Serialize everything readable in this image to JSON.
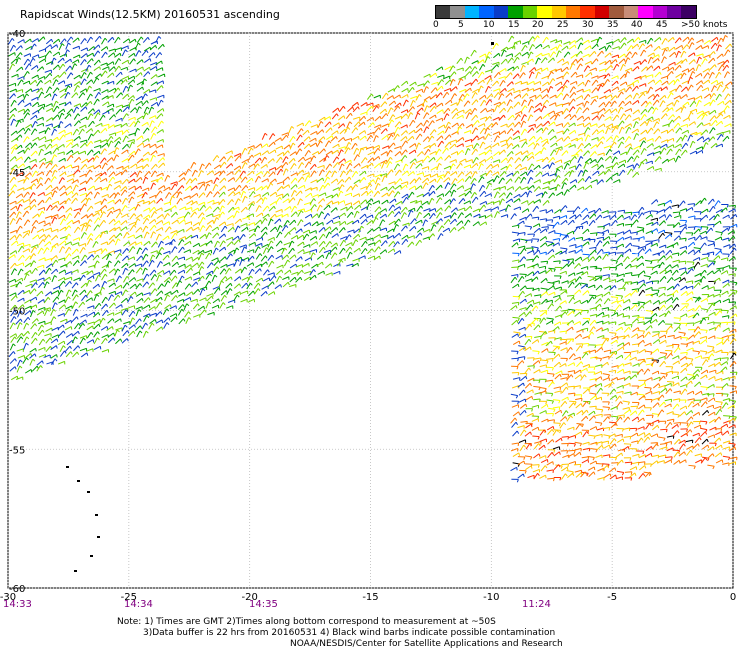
{
  "title": "Rapidscat Winds(12.5KM) 20160531 ascending",
  "colorbar": {
    "labels": [
      "0",
      "5",
      "10",
      "15",
      "20",
      "25",
      "30",
      "35",
      "40",
      "45",
      ">50 knots"
    ],
    "colors": [
      "#3a3a3a",
      "#909090",
      "#00b4ff",
      "#0064ff",
      "#0a3cc8",
      "#00a000",
      "#6ad200",
      "#ffff00",
      "#ffc800",
      "#ff7800",
      "#ff3000",
      "#d20000",
      "#a05a3c",
      "#c88c78",
      "#ff00ff",
      "#b400d2",
      "#6e00a0",
      "#3c0064"
    ]
  },
  "axes": {
    "lon_ticks": [
      "-30",
      "-25",
      "-20",
      "-15",
      "-10",
      "-5",
      "0"
    ],
    "lat_ticks": [
      "-40",
      "-45",
      "-50",
      "-55",
      "-60"
    ],
    "lon_range": [
      -30,
      0
    ],
    "lat_range": [
      -60,
      -40
    ]
  },
  "times": [
    "14:33",
    "14:34",
    "14:35",
    "11:24"
  ],
  "notes": {
    "line1": "Note: 1) Times are GMT 2)Times along bottom correspond to measurement at ~50S",
    "line2": "3)Data buffer is 22 hrs from 20160531 4) Black wind barbs indicate possible contamination",
    "line3": "NOAA/NESDIS/Center for Satellite Applications and Research"
  }
}
